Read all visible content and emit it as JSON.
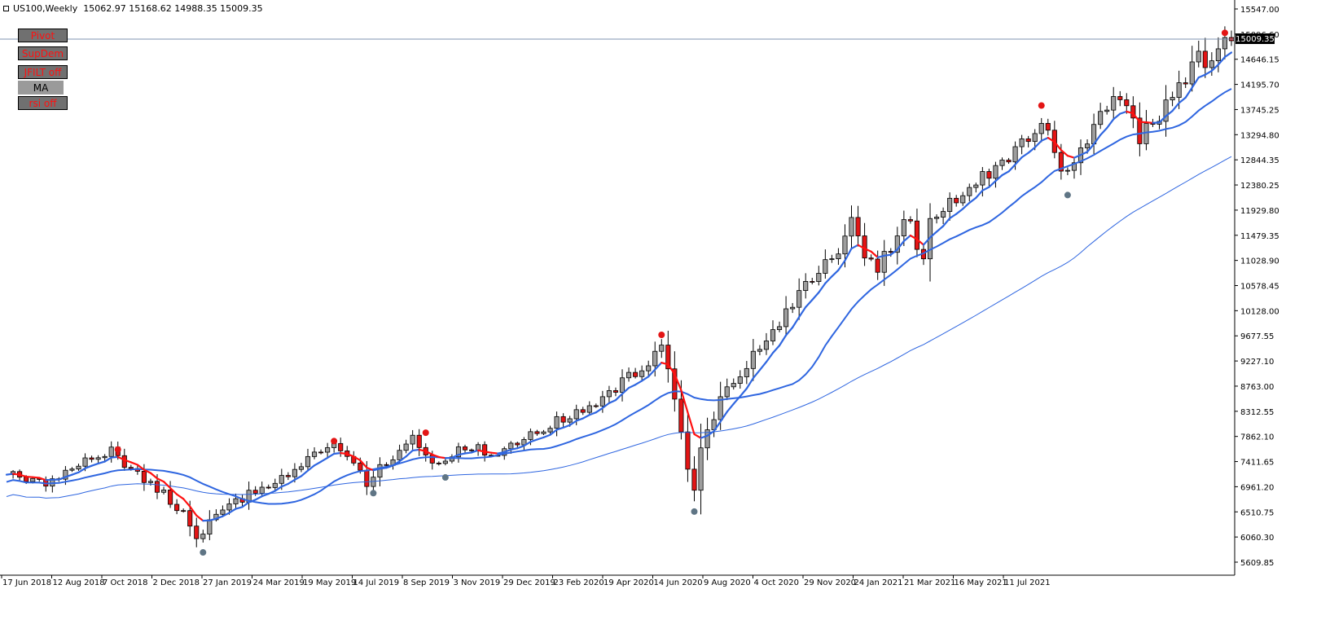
{
  "header": {
    "symbol": "US100,Weekly",
    "ohlc": "15062.97 15168.62 14988.35 15009.35"
  },
  "buttons": [
    {
      "label": "Pivot",
      "color": "#ff1010"
    },
    {
      "label": "SupDem",
      "color": "#ff1010"
    },
    {
      "label": "JFILT off",
      "color": "#ff1010"
    },
    {
      "label": "MA",
      "color": "#000000"
    },
    {
      "label": "rsi off",
      "color": "#ff1010"
    }
  ],
  "price_tag": "15009.35",
  "chart_data": {
    "type": "candlestick",
    "y_ticks": [
      "15547.00",
      "15096.60",
      "14646.15",
      "14195.70",
      "13745.25",
      "13294.80",
      "12844.35",
      "12380.25",
      "11929.80",
      "11479.35",
      "11028.90",
      "10578.45",
      "10128.00",
      "9677.55",
      "9227.10",
      "8763.00",
      "8312.55",
      "7862.10",
      "7411.65",
      "6961.20",
      "6510.75",
      "6060.30",
      "5609.85"
    ],
    "x_ticks": [
      "17 Jun 2018",
      "12 Aug 2018",
      "7 Oct 2018",
      "2 Dec 2018",
      "27 Jan 2019",
      "24 Mar 2019",
      "19 May 2019",
      "14 Jul 2019",
      "8 Sep 2019",
      "3 Nov 2019",
      "29 Dec 2019",
      "23 Feb 2020",
      "19 Apr 2020",
      "14 Jun 2020",
      "9 Aug 2020",
      "4 Oct 2020",
      "29 Nov 2020",
      "24 Jan 2021",
      "21 Mar 2021",
      "16 May 2021",
      "11 Jul 2021"
    ],
    "ylim": [
      5540,
      15650
    ],
    "current_price": 15009.35,
    "anchors": [
      {
        "week": 0,
        "price": 7250
      },
      {
        "week": 6,
        "price": 7100
      },
      {
        "week": 12,
        "price": 7480
      },
      {
        "week": 16,
        "price": 7660
      },
      {
        "week": 19,
        "price": 7330
      },
      {
        "week": 24,
        "price": 6900
      },
      {
        "week": 28,
        "price": 6400
      },
      {
        "week": 29,
        "price": 6150
      },
      {
        "week": 30,
        "price": 6260
      },
      {
        "week": 33,
        "price": 6650
      },
      {
        "week": 38,
        "price": 6960
      },
      {
        "week": 41,
        "price": 7100
      },
      {
        "week": 46,
        "price": 7550
      },
      {
        "week": 50,
        "price": 7780
      },
      {
        "week": 53,
        "price": 7500
      },
      {
        "week": 55,
        "price": 7050
      },
      {
        "week": 56,
        "price": 7250
      },
      {
        "week": 60,
        "price": 7700
      },
      {
        "week": 62,
        "price": 7880
      },
      {
        "week": 65,
        "price": 7450
      },
      {
        "week": 67,
        "price": 7560
      },
      {
        "week": 70,
        "price": 7750
      },
      {
        "week": 75,
        "price": 7650
      },
      {
        "week": 78,
        "price": 7800
      },
      {
        "week": 82,
        "price": 8100
      },
      {
        "week": 87,
        "price": 8350
      },
      {
        "week": 92,
        "price": 8700
      },
      {
        "week": 96,
        "price": 9100
      },
      {
        "week": 99,
        "price": 9400
      },
      {
        "week": 100,
        "price": 9650
      },
      {
        "week": 101,
        "price": 9150
      },
      {
        "week": 102,
        "price": 8500
      },
      {
        "week": 103,
        "price": 8100
      },
      {
        "week": 104,
        "price": 7300
      },
      {
        "week": 105,
        "price": 7050
      },
      {
        "week": 106,
        "price": 7700
      },
      {
        "week": 108,
        "price": 8300
      },
      {
        "week": 110,
        "price": 8800
      },
      {
        "week": 113,
        "price": 9250
      },
      {
        "week": 116,
        "price": 9700
      },
      {
        "week": 119,
        "price": 10100
      },
      {
        "week": 121,
        "price": 10450
      },
      {
        "week": 124,
        "price": 10850
      },
      {
        "week": 127,
        "price": 11300
      },
      {
        "week": 129,
        "price": 11750
      },
      {
        "week": 130,
        "price": 11600
      },
      {
        "week": 131,
        "price": 11150
      },
      {
        "week": 133,
        "price": 11000
      },
      {
        "week": 136,
        "price": 11500
      },
      {
        "week": 138,
        "price": 11900
      },
      {
        "week": 139,
        "price": 11250
      },
      {
        "week": 140,
        "price": 11050
      },
      {
        "week": 141,
        "price": 11800
      },
      {
        "week": 145,
        "price": 12150
      },
      {
        "week": 149,
        "price": 12600
      },
      {
        "week": 153,
        "price": 12950
      },
      {
        "week": 156,
        "price": 13200
      },
      {
        "week": 158,
        "price": 13650
      },
      {
        "week": 159,
        "price": 13300
      },
      {
        "week": 161,
        "price": 12750
      },
      {
        "week": 162,
        "price": 12550
      },
      {
        "week": 163,
        "price": 12900
      },
      {
        "week": 166,
        "price": 13400
      },
      {
        "week": 168,
        "price": 13850
      },
      {
        "week": 170,
        "price": 13950
      },
      {
        "week": 172,
        "price": 13650
      },
      {
        "week": 173,
        "price": 13200
      },
      {
        "week": 174,
        "price": 13450
      },
      {
        "week": 176,
        "price": 13700
      },
      {
        "week": 178,
        "price": 14000
      },
      {
        "week": 180,
        "price": 14400
      },
      {
        "week": 182,
        "price": 14700
      },
      {
        "week": 184,
        "price": 14650
      },
      {
        "week": 186,
        "price": 15050
      },
      {
        "week": 187,
        "price": 15009
      }
    ],
    "pivots_high": [
      {
        "week": 17,
        "price": 7700
      },
      {
        "week": 50,
        "price": 7850
      },
      {
        "week": 64,
        "price": 8000
      },
      {
        "week": 100,
        "price": 9750
      },
      {
        "week": 158,
        "price": 13850
      },
      {
        "week": 186,
        "price": 15150
      }
    ],
    "pivots_low": [
      {
        "week": 30,
        "price": 5860
      },
      {
        "week": 56,
        "price": 6920
      },
      {
        "week": 67,
        "price": 7200
      },
      {
        "week": 105,
        "price": 6590
      },
      {
        "week": 162,
        "price": 12250
      }
    ],
    "ma_fast_color": "#2f66e0",
    "ma_slow_color": "#2f66e0",
    "jfilt_down_color": "#ff1010",
    "bull_color": "#9e9e9e",
    "bear_color": "#e31515"
  }
}
